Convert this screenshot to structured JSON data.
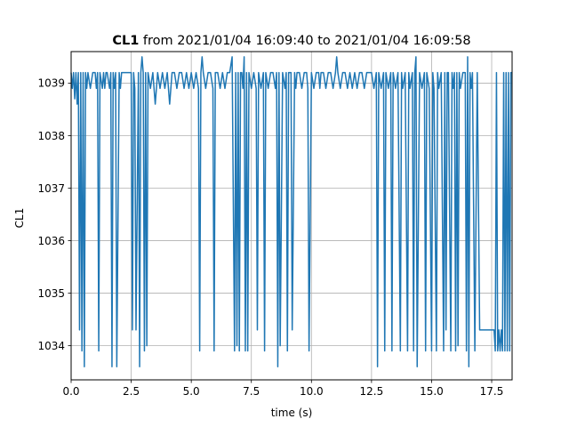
{
  "chart_data": {
    "type": "line",
    "title_bold": "CL1",
    "title_rest": " from 2021/01/04 16:09:40 to 2021/01/04 16:09:58",
    "xlabel": "time (s)",
    "ylabel": "CL1",
    "xlim": [
      0,
      18.35
    ],
    "ylim": [
      1033.35,
      1039.6
    ],
    "grid": true,
    "x_ticks": [
      0.0,
      2.5,
      5.0,
      7.5,
      10.0,
      12.5,
      15.0,
      17.5
    ],
    "x_tick_labels": [
      "0.0",
      "2.5",
      "5.0",
      "7.5",
      "10.0",
      "12.5",
      "15.0",
      "17.5"
    ],
    "y_ticks": [
      1034,
      1035,
      1036,
      1037,
      1038,
      1039
    ],
    "y_tick_labels": [
      "1034",
      "1035",
      "1036",
      "1037",
      "1038",
      "1039"
    ],
    "colors": {
      "line": "#1f77b4",
      "grid": "#b0b0b0"
    },
    "series": [
      {
        "x": [
          0.0,
          0.05,
          0.1,
          0.15,
          0.2,
          0.25,
          0.3,
          0.35,
          0.4,
          0.45,
          0.5,
          0.55,
          0.6,
          0.65,
          0.7,
          0.8,
          0.9,
          1.0,
          1.05,
          1.1,
          1.15,
          1.2,
          1.3,
          1.35,
          1.4,
          1.45,
          1.5,
          1.6,
          1.65,
          1.7,
          1.75,
          1.8,
          1.85,
          1.9,
          2.0,
          2.05,
          2.1,
          2.2,
          2.3,
          2.4,
          2.5,
          2.55,
          2.6,
          2.65,
          2.7,
          2.8,
          2.85,
          2.9,
          2.95,
          3.0,
          3.05,
          3.1,
          3.15,
          3.2,
          3.3,
          3.4,
          3.5,
          3.6,
          3.7,
          3.8,
          3.9,
          4.0,
          4.1,
          4.2,
          4.3,
          4.4,
          4.5,
          4.6,
          4.7,
          4.8,
          4.9,
          5.0,
          5.1,
          5.2,
          5.3,
          5.35,
          5.4,
          5.45,
          5.5,
          5.6,
          5.7,
          5.8,
          5.9,
          5.95,
          6.0,
          6.1,
          6.2,
          6.3,
          6.4,
          6.5,
          6.6,
          6.7,
          6.8,
          6.85,
          6.9,
          6.95,
          7.0,
          7.05,
          7.1,
          7.15,
          7.2,
          7.25,
          7.3,
          7.35,
          7.4,
          7.5,
          7.6,
          7.7,
          7.75,
          7.8,
          7.9,
          8.0,
          8.05,
          8.1,
          8.2,
          8.3,
          8.4,
          8.5,
          8.55,
          8.6,
          8.65,
          8.7,
          8.8,
          8.9,
          8.95,
          9.0,
          9.05,
          9.1,
          9.15,
          9.2,
          9.3,
          9.35,
          9.4,
          9.5,
          9.6,
          9.7,
          9.8,
          9.85,
          9.9,
          10.0,
          10.1,
          10.2,
          10.3,
          10.35,
          10.4,
          10.5,
          10.6,
          10.7,
          10.8,
          10.9,
          11.0,
          11.05,
          11.1,
          11.2,
          11.3,
          11.4,
          11.5,
          11.6,
          11.7,
          11.8,
          11.9,
          12.0,
          12.1,
          12.2,
          12.3,
          12.4,
          12.5,
          12.6,
          12.7,
          12.75,
          12.8,
          12.9,
          13.0,
          13.05,
          13.1,
          13.2,
          13.3,
          13.35,
          13.4,
          13.5,
          13.6,
          13.7,
          13.75,
          13.8,
          13.9,
          14.0,
          14.05,
          14.1,
          14.2,
          14.25,
          14.3,
          14.35,
          14.4,
          14.5,
          14.6,
          14.7,
          14.75,
          14.8,
          14.9,
          15.0,
          15.05,
          15.1,
          15.2,
          15.25,
          15.3,
          15.4,
          15.5,
          15.55,
          15.6,
          15.65,
          15.7,
          15.8,
          15.85,
          15.9,
          15.95,
          16.0,
          16.05,
          16.1,
          16.15,
          16.2,
          16.3,
          16.4,
          16.45,
          16.5,
          16.55,
          16.6,
          16.65,
          16.7,
          16.8,
          16.9,
          17.0,
          17.1,
          17.2,
          17.3,
          17.4,
          17.5,
          17.6,
          17.65,
          17.7,
          17.75,
          17.8,
          17.85,
          17.9,
          17.95,
          18.0,
          18.05,
          18.1,
          18.15,
          18.2,
          18.25,
          18.3,
          18.35
        ],
        "y": [
          1039.2,
          1038.9,
          1039.2,
          1038.7,
          1039.2,
          1038.6,
          1039.2,
          1034.3,
          1039.2,
          1033.9,
          1039.2,
          1033.6,
          1039.2,
          1038.9,
          1039.2,
          1038.9,
          1039.2,
          1039.2,
          1038.9,
          1039.2,
          1033.9,
          1039.2,
          1038.9,
          1039.2,
          1038.9,
          1039.2,
          1039.2,
          1038.9,
          1039.2,
          1033.6,
          1039.2,
          1038.9,
          1039.2,
          1033.6,
          1039.2,
          1038.9,
          1039.2,
          1039.2,
          1039.2,
          1039.2,
          1039.2,
          1034.3,
          1039.2,
          1038.9,
          1034.3,
          1039.2,
          1033.6,
          1039.2,
          1039.5,
          1039.2,
          1033.9,
          1039.2,
          1034.0,
          1039.2,
          1038.9,
          1039.2,
          1038.6,
          1039.2,
          1038.9,
          1039.2,
          1038.9,
          1039.2,
          1038.6,
          1039.2,
          1039.2,
          1038.9,
          1039.2,
          1039.2,
          1038.9,
          1039.2,
          1038.9,
          1039.2,
          1038.9,
          1039.2,
          1038.9,
          1033.9,
          1039.2,
          1039.5,
          1039.2,
          1038.9,
          1039.2,
          1039.2,
          1038.9,
          1033.9,
          1039.2,
          1039.2,
          1038.9,
          1039.2,
          1038.9,
          1039.2,
          1039.2,
          1039.5,
          1033.9,
          1039.2,
          1034.0,
          1039.2,
          1033.9,
          1039.2,
          1039.2,
          1038.9,
          1039.5,
          1033.9,
          1039.2,
          1033.9,
          1039.2,
          1038.9,
          1039.2,
          1038.9,
          1034.3,
          1039.2,
          1038.9,
          1039.2,
          1033.9,
          1039.2,
          1038.9,
          1039.2,
          1039.2,
          1038.9,
          1039.2,
          1033.6,
          1039.2,
          1034.0,
          1039.2,
          1038.9,
          1039.2,
          1033.9,
          1039.2,
          1039.2,
          1039.2,
          1034.3,
          1039.2,
          1038.9,
          1039.2,
          1039.2,
          1038.9,
          1039.2,
          1039.2,
          1038.9,
          1033.9,
          1039.2,
          1038.9,
          1039.2,
          1039.2,
          1038.9,
          1039.2,
          1039.2,
          1038.9,
          1039.2,
          1039.2,
          1038.9,
          1039.2,
          1039.5,
          1039.2,
          1038.9,
          1039.2,
          1039.2,
          1038.9,
          1039.2,
          1038.9,
          1039.2,
          1038.9,
          1039.2,
          1039.2,
          1038.9,
          1039.2,
          1039.2,
          1039.2,
          1038.9,
          1039.2,
          1033.6,
          1039.2,
          1038.9,
          1039.2,
          1033.9,
          1039.2,
          1038.9,
          1039.2,
          1033.9,
          1039.2,
          1038.9,
          1039.2,
          1033.9,
          1039.2,
          1038.9,
          1039.2,
          1033.9,
          1039.2,
          1038.9,
          1039.2,
          1033.9,
          1039.2,
          1039.5,
          1033.6,
          1039.2,
          1038.9,
          1039.2,
          1033.9,
          1039.2,
          1038.9,
          1033.9,
          1039.2,
          1038.9,
          1033.9,
          1039.2,
          1038.9,
          1039.2,
          1033.9,
          1039.2,
          1034.3,
          1039.2,
          1039.2,
          1033.9,
          1039.2,
          1038.9,
          1039.2,
          1033.9,
          1039.2,
          1034.0,
          1039.2,
          1038.9,
          1039.2,
          1039.2,
          1033.9,
          1039.5,
          1033.6,
          1039.2,
          1038.9,
          1039.2,
          1033.9,
          1039.2,
          1034.3,
          1034.3,
          1034.3,
          1034.3,
          1034.3,
          1034.3,
          1034.3,
          1033.9,
          1039.2,
          1033.9,
          1034.3,
          1033.9,
          1034.3,
          1033.9,
          1039.2,
          1033.9,
          1039.2,
          1033.9,
          1039.2,
          1033.9,
          1039.2,
          1039.2
        ]
      }
    ]
  }
}
